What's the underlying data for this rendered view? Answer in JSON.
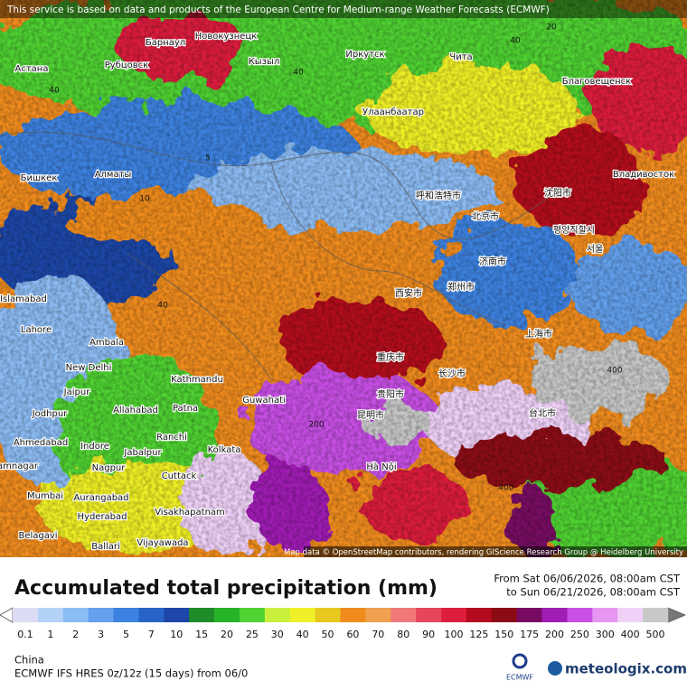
{
  "header_notice": "This service is based on data and products of the European Centre for Medium-range Weather Forecasts (ECMWF)",
  "map": {
    "attribution": "Map data © OpenStreetMap contributors, rendering GIScience Research Group @ Heidelberg University",
    "places": [
      "Астана",
      "Рубцовск",
      "Барнаул",
      "Новокузнецк",
      "Кызыл",
      "Иркутск",
      "Чита",
      "Улаанбаатар",
      "Благовещенск",
      "Владивосток",
      "Бишкек",
      "Алматы",
      "Islamabad",
      "Lahore",
      "Ambala",
      "New Delhi",
      "Kathmandu",
      "Jaipur",
      "Jodhpur",
      "Allahabad",
      "Patna",
      "Guwahati",
      "Ahmedabad",
      "Indore",
      "Ranchi",
      "Kolkata",
      "Jabalpur",
      "Jamnagar",
      "Nagpur",
      "Cuttack",
      "Mumbai",
      "Aurangabad",
      "Hyderabad",
      "Visakhapatnam",
      "Belagavi",
      "Ballari",
      "Vijayawada",
      "Hà Nội",
      "北京市",
      "郑州市",
      "上海市",
      "西安市",
      "重庆市",
      "长沙市",
      "昆明市",
      "贵阳市",
      "台北市",
      "沈阳市",
      "济南市",
      "呼和浩特市",
      "평양직할시",
      "서울"
    ],
    "contour_labels": [
      40,
      40,
      40,
      5,
      10,
      20,
      400,
      200,
      400,
      40
    ]
  },
  "title": "Accumulated total precipitation (mm)",
  "period": {
    "from": "From Sat 06/06/2026, 08:00am CST",
    "to": "to Sun 06/21/2026, 08:00am CST"
  },
  "legend": {
    "levels": [
      0.1,
      1,
      2,
      3,
      5,
      7,
      10,
      15,
      20,
      25,
      30,
      40,
      50,
      60,
      70,
      80,
      90,
      100,
      125,
      150,
      175,
      200,
      250,
      300,
      400,
      500
    ],
    "colors": [
      "#dcdcf4",
      "#b4d2f8",
      "#8cbcf4",
      "#64a0ec",
      "#3c82e0",
      "#2864c8",
      "#1e46a8",
      "#1e8c28",
      "#28b428",
      "#50d232",
      "#c8f03c",
      "#f0f028",
      "#e6c81e",
      "#f08c1e",
      "#f0a050",
      "#f07878",
      "#e6465a",
      "#dc1e3c",
      "#b40a1e",
      "#8c0a14",
      "#780a64",
      "#a01eb4",
      "#c850e6",
      "#e696f0",
      "#f0d2f8",
      "#c8c8c8"
    ]
  },
  "region": "China",
  "model": "ECMWF IFS HRES 0z/12z (15 days) from 06/0",
  "logos": [
    "ECMWF",
    "meteologix.com"
  ]
}
